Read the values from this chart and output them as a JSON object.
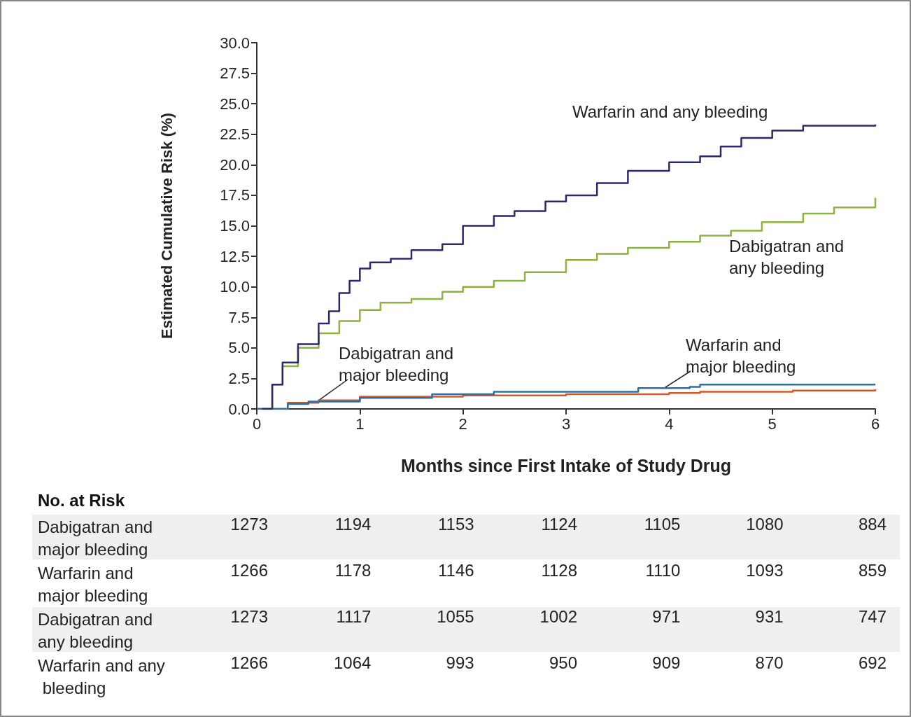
{
  "chart_data": {
    "type": "step",
    "xlabel": "Months since First Intake of Study Drug",
    "ylabel": "Estimated Cumulative Risk (%)",
    "xlim": [
      0,
      6
    ],
    "xticks": [
      0,
      1,
      2,
      3,
      4,
      5,
      6
    ],
    "ylim": [
      0,
      30
    ],
    "yticks": [
      {
        "value": 0,
        "label": "0.0"
      },
      {
        "value": 2.5,
        "label": "2.5"
      },
      {
        "value": 5,
        "label": "5.0"
      },
      {
        "value": 7.5,
        "label": "7.5"
      },
      {
        "value": 10,
        "label": "10.0"
      },
      {
        "value": 12.5,
        "label": "12.5"
      },
      {
        "value": 15,
        "label": "15.0"
      },
      {
        "value": 17.5,
        "label": "17.5"
      },
      {
        "value": 20,
        "label": "20.0"
      },
      {
        "value": 22.5,
        "label": "22.5"
      },
      {
        "value": 25,
        "label": "25.0"
      },
      {
        "value": 27.5,
        "label": "27.5"
      },
      {
        "value": 30,
        "label": "30.0"
      }
    ],
    "grid": false,
    "legend": false,
    "marker": "none",
    "line_style": "solid",
    "series": [
      {
        "name": "Warfarin and any bleeding",
        "color": "#2a2a6a",
        "x": [
          0.05,
          0.15,
          0.25,
          0.4,
          0.6,
          0.7,
          0.8,
          0.9,
          1.0,
          1.1,
          1.3,
          1.5,
          1.8,
          2.0,
          2.3,
          2.5,
          2.8,
          3.0,
          3.3,
          3.6,
          4.0,
          4.3,
          4.5,
          4.7,
          5.0,
          5.3,
          5.6,
          6.0
        ],
        "values": [
          0,
          2,
          3.8,
          5.3,
          7,
          8,
          9.5,
          10.5,
          11.5,
          12,
          12.3,
          13,
          13.5,
          15,
          15.8,
          16.2,
          17,
          17.5,
          18.5,
          19.5,
          20.2,
          20.7,
          21.5,
          22.2,
          22.8,
          23.2,
          23.2,
          23.3
        ]
      },
      {
        "name": "Dabigatran and any bleeding",
        "color": "#8db33c",
        "x": [
          0.1,
          0.15,
          0.25,
          0.4,
          0.6,
          0.8,
          1.0,
          1.2,
          1.5,
          1.8,
          2.0,
          2.3,
          2.6,
          3.0,
          3.3,
          3.6,
          4.0,
          4.3,
          4.6,
          4.9,
          5.3,
          5.6,
          6.0
        ],
        "values": [
          0,
          2,
          3.5,
          5,
          6.2,
          7.2,
          8.1,
          8.7,
          9,
          9.6,
          10,
          10.5,
          11.2,
          12.2,
          12.7,
          13.2,
          13.7,
          14.2,
          14.6,
          15.3,
          16,
          16.5,
          17.3
        ]
      },
      {
        "name": "Warfarin and major bleeding",
        "color": "#2e6fa0",
        "x": [
          0,
          0.3,
          0.5,
          1.0,
          1.7,
          2.3,
          3.7,
          4.2,
          4.3,
          6.0
        ],
        "values": [
          0,
          0.4,
          0.6,
          0.9,
          1.2,
          1.4,
          1.7,
          1.8,
          2.0,
          2.0
        ]
      },
      {
        "name": "Dabigatran and major bleeding",
        "color": "#d25a2a",
        "x": [
          0,
          0.3,
          0.6,
          1.0,
          2.0,
          3.0,
          4.0,
          4.3,
          5.2,
          6.0
        ],
        "values": [
          0,
          0.5,
          0.7,
          1.0,
          1.1,
          1.2,
          1.3,
          1.4,
          1.5,
          1.6
        ]
      }
    ],
    "annotations": [
      "No. at Risk",
      "Dabigatran and major bleeding",
      "1273",
      "1194",
      "1153",
      "1124",
      "1105",
      "1080",
      "884",
      "Warfarin and major bleeding",
      "1266",
      "1178",
      "1146",
      "1128",
      "1110",
      "1093",
      "859",
      "Dabigatran and any bleeding",
      "1273",
      "1117",
      "1055",
      "1002",
      "971",
      "931",
      "747",
      "Warfarin and any bleeding",
      "1266",
      "1064",
      "993",
      "950",
      "909",
      "870",
      "692"
    ]
  }
}
